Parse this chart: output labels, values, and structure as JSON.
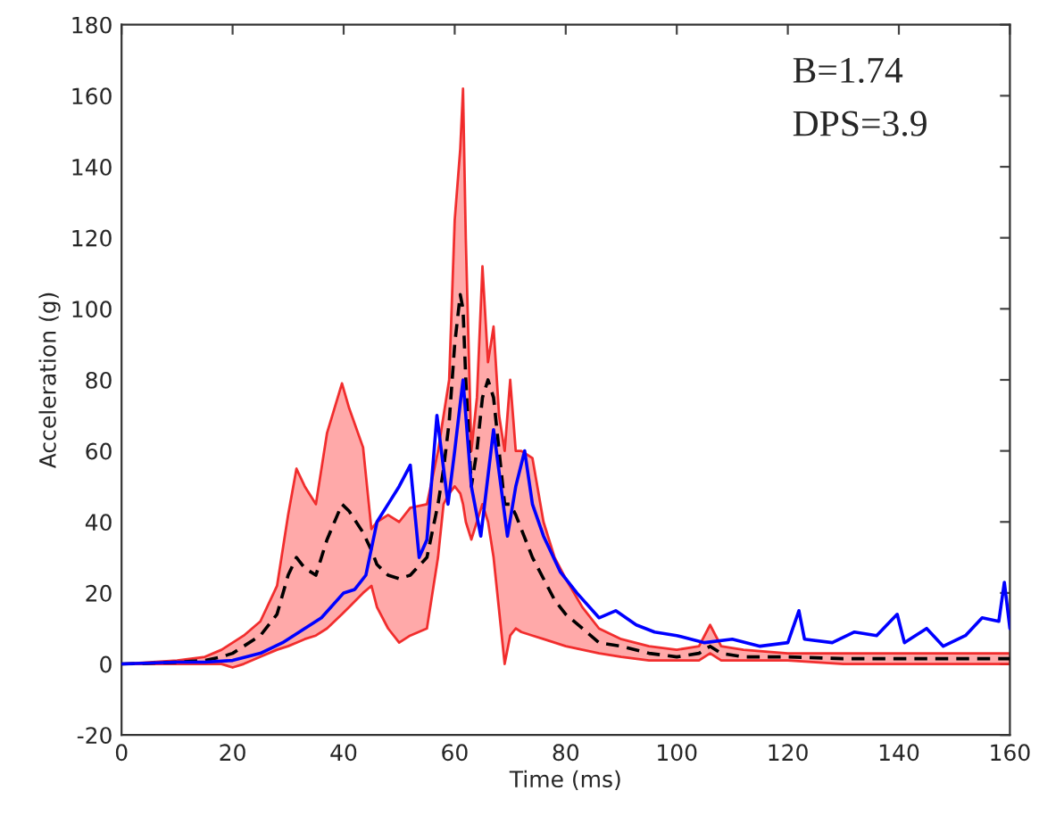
{
  "chart_data": {
    "type": "line",
    "xlabel": "Time (ms)",
    "ylabel": "Acceleration (g)",
    "annotations": [
      "B=1.74",
      "DPS=3.9"
    ],
    "xlim": [
      0,
      160
    ],
    "xticks": [
      0,
      20,
      40,
      60,
      80,
      100,
      120,
      140,
      160
    ],
    "ylim": [
      -20,
      180
    ],
    "yticks": [
      -20,
      0,
      20,
      40,
      60,
      80,
      100,
      120,
      140,
      160,
      180
    ],
    "grid": false,
    "legend": false,
    "series": [
      {
        "color": "#000000",
        "line_style": "dashed",
        "x": [
          0,
          5,
          10,
          15,
          18,
          20,
          22,
          25,
          28,
          30,
          31.5,
          33,
          35,
          37,
          39.7,
          41,
          43.5,
          45,
          46,
          48,
          50,
          52,
          55,
          57,
          58,
          59,
          60,
          61,
          61.5,
          62,
          63,
          64,
          65,
          66,
          67,
          68,
          69,
          70,
          71,
          72,
          74,
          76,
          78,
          80,
          83,
          86,
          90,
          95,
          100,
          104,
          106,
          108,
          112,
          120,
          130,
          140,
          150,
          160
        ],
        "values": [
          0,
          0.2,
          0.5,
          1,
          2,
          3,
          5,
          8,
          14,
          25,
          30,
          27,
          25,
          35,
          45,
          43,
          37,
          32,
          28,
          25,
          24,
          25,
          30,
          45,
          55,
          68,
          90,
          104,
          100,
          80,
          50,
          60,
          75,
          80,
          75,
          60,
          45,
          45,
          42,
          38,
          30,
          24,
          18,
          14,
          10,
          6,
          5,
          3,
          2,
          3,
          5,
          3,
          2,
          2,
          1.5,
          1.5,
          1.5,
          1.5
        ],
        "lower": [
          0,
          0,
          0,
          0,
          0,
          -1,
          0,
          2,
          4,
          5,
          6,
          7,
          8,
          10,
          14,
          16,
          20,
          22,
          16,
          10,
          6,
          8,
          10,
          30,
          45,
          48,
          50,
          48,
          45,
          40,
          35,
          40,
          45,
          40,
          30,
          15,
          0,
          8,
          10,
          9,
          8,
          7,
          6,
          5,
          4,
          3,
          2,
          1,
          1,
          1,
          3,
          1,
          1,
          1,
          0,
          0,
          0,
          0
        ],
        "upper": [
          0,
          0.5,
          1,
          2,
          4,
          6,
          8,
          12,
          22,
          42,
          55,
          50,
          45,
          65,
          79,
          72,
          61,
          38,
          40,
          42,
          40,
          44,
          45,
          60,
          70,
          80,
          125,
          145,
          162,
          120,
          60,
          75,
          112,
          85,
          95,
          70,
          60,
          80,
          60,
          60,
          58,
          40,
          30,
          24,
          16,
          10,
          7,
          5,
          4,
          5,
          11,
          5,
          4,
          3,
          3,
          3,
          3,
          3
        ]
      },
      {
        "color": "#0000ff",
        "line_style": "solid",
        "x": [
          0,
          10,
          15,
          20,
          25,
          29,
          32,
          36,
          40,
          42,
          44,
          46,
          48,
          50,
          52,
          53.6,
          55,
          56.8,
          58.8,
          60,
          61.5,
          63,
          64.7,
          67,
          69.5,
          71,
          72.6,
          74,
          76,
          79,
          82,
          86,
          89,
          92.7,
          96,
          100,
          105,
          110,
          115,
          120,
          122,
          123,
          128,
          132,
          136,
          139.7,
          141,
          145,
          148,
          152,
          155,
          158,
          159,
          160
        ],
        "values": [
          0,
          0.5,
          0.5,
          1,
          3,
          6,
          9,
          13,
          20,
          21,
          25,
          40,
          45,
          50,
          56,
          30,
          35,
          70,
          45,
          60,
          80,
          50,
          36,
          66,
          36,
          50,
          60,
          45,
          36,
          26,
          20,
          13,
          15,
          11,
          9,
          8,
          6,
          7,
          5,
          6,
          15,
          7,
          6,
          9,
          8,
          14,
          6,
          10,
          5,
          8,
          13,
          12,
          23,
          10
        ]
      }
    ]
  }
}
